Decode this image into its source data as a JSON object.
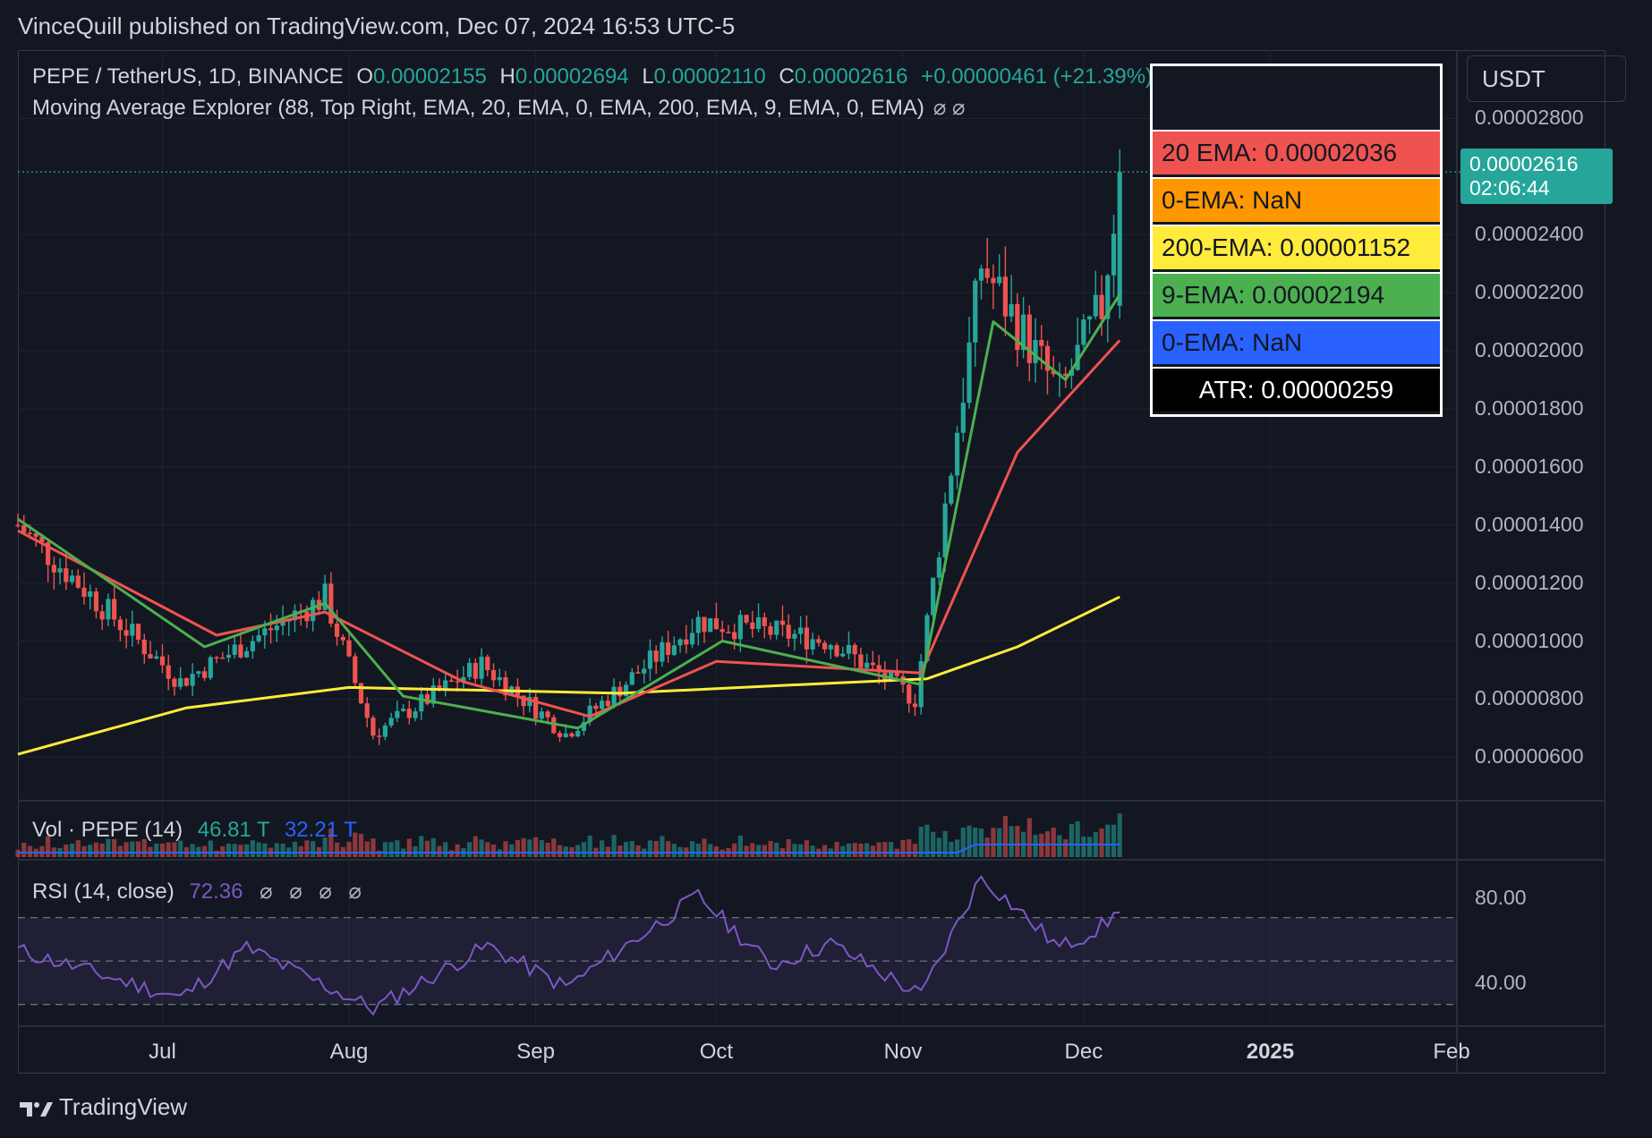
{
  "header": {
    "published": "VinceQuill published on TradingView.com, Dec 07, 2024 16:53 UTC-5"
  },
  "symbol": {
    "name": "PEPE / TetherUS, 1D, BINANCE",
    "o_label": "O",
    "o": "0.00002155",
    "h_label": "H",
    "h": "0.00002694",
    "l_label": "L",
    "l": "0.00002110",
    "c_label": "C",
    "c": "0.00002616",
    "change": "+0.00000461 (+21.39%)"
  },
  "indicator": {
    "text": "Moving Average Explorer (88, Top Right, EMA, 20, EMA, 0, EMA, 200, EMA, 9, EMA, 0, EMA)",
    "glyph": "⌀ ⌀"
  },
  "currency": "USDT",
  "last_price": {
    "price": "0.00002616",
    "countdown": "02:06:44"
  },
  "legend": {
    "rows": [
      {
        "text": "20 EMA: 0.00002036",
        "bg": "#ef5350",
        "fg": "#131722"
      },
      {
        "text": "0-EMA: NaN",
        "bg": "#ff9800",
        "fg": "#131722"
      },
      {
        "text": "200-EMA: 0.00001152",
        "bg": "#ffeb3b",
        "fg": "#131722"
      },
      {
        "text": "9-EMA: 0.00002194",
        "bg": "#4caf50",
        "fg": "#131722"
      },
      {
        "text": "0-EMA: NaN",
        "bg": "#2962ff",
        "fg": "#131722"
      },
      {
        "text": "ATR: 0.00000259",
        "bg": "#000000",
        "fg": "#ffffff"
      }
    ]
  },
  "price_axis": [
    "0.00002800",
    "0.00002400",
    "0.00002200",
    "0.00002000",
    "0.00001800",
    "0.00001600",
    "0.00001400",
    "0.00001200",
    "0.00001000",
    "0.00000800",
    "0.00000600"
  ],
  "time_axis": [
    "Jul",
    "Aug",
    "Sep",
    "Oct",
    "Nov",
    "Dec",
    "2025",
    "Feb"
  ],
  "volume": {
    "title": "Vol · PEPE (14)",
    "v1": "46.81 T",
    "v2": "32.21 T"
  },
  "rsi": {
    "title": "RSI (14, close)",
    "value": "72.36",
    "glyphs": "⌀ ⌀ ⌀ ⌀",
    "levels": [
      "80.00",
      "40.00"
    ]
  },
  "brand": "TradingView",
  "colors": {
    "up": "#26a69a",
    "down": "#ef5350",
    "ema20": "#ef5350",
    "ema9": "#4caf50",
    "ema200": "#ffeb3b",
    "rsi": "#7e57c2",
    "vol_ma": "#2962ff"
  },
  "chart_data": {
    "type": "candlestick",
    "symbol": "PEPE / TetherUS",
    "interval": "1D",
    "x_range": [
      "2024-06-07",
      "2025-02-01"
    ],
    "ylim": [
      4.5e-06,
      2.9e-05
    ],
    "last_close": 2.616e-05,
    "key_points": [
      {
        "date": "2024-06-07",
        "close": 1.4e-05
      },
      {
        "date": "2024-07-04",
        "close": 8.6e-06
      },
      {
        "date": "2024-07-28",
        "close": 1.15e-05
      },
      {
        "date": "2024-08-05",
        "close": 6.8e-06
      },
      {
        "date": "2024-08-23",
        "close": 9.2e-06
      },
      {
        "date": "2024-09-06",
        "close": 6.8e-06
      },
      {
        "date": "2024-09-28",
        "close": 1.07e-05
      },
      {
        "date": "2024-10-20",
        "close": 1e-05
      },
      {
        "date": "2024-11-03",
        "close": 8e-06
      },
      {
        "date": "2024-11-12",
        "close": 2e-05
      },
      {
        "date": "2024-11-14",
        "close": 2.3e-05
      },
      {
        "date": "2024-11-27",
        "close": 1.85e-05
      },
      {
        "date": "2024-12-04",
        "close": 2.15e-05
      },
      {
        "date": "2024-12-07",
        "close": 2.616e-05
      }
    ],
    "ema20": [
      {
        "date": "2024-06-07",
        "value": 1.38e-05
      },
      {
        "date": "2024-07-10",
        "value": 1.02e-05
      },
      {
        "date": "2024-07-28",
        "value": 1.1e-05
      },
      {
        "date": "2024-08-20",
        "value": 8.6e-06
      },
      {
        "date": "2024-09-10",
        "value": 7.4e-06
      },
      {
        "date": "2024-10-01",
        "value": 9.3e-06
      },
      {
        "date": "2024-11-04",
        "value": 8.9e-06
      },
      {
        "date": "2024-11-20",
        "value": 1.65e-05
      },
      {
        "date": "2024-12-07",
        "value": 2.036e-05
      }
    ],
    "ema9": [
      {
        "date": "2024-06-07",
        "value": 1.42e-05
      },
      {
        "date": "2024-07-08",
        "value": 9.8e-06
      },
      {
        "date": "2024-07-28",
        "value": 1.13e-05
      },
      {
        "date": "2024-08-10",
        "value": 8.1e-06
      },
      {
        "date": "2024-09-08",
        "value": 7e-06
      },
      {
        "date": "2024-10-02",
        "value": 1e-05
      },
      {
        "date": "2024-11-04",
        "value": 8.5e-06
      },
      {
        "date": "2024-11-16",
        "value": 2.1e-05
      },
      {
        "date": "2024-11-28",
        "value": 1.9e-05
      },
      {
        "date": "2024-12-07",
        "value": 2.194e-05
      }
    ],
    "ema200": [
      {
        "date": "2024-06-07",
        "value": 6.1e-06
      },
      {
        "date": "2024-07-05",
        "value": 7.7e-06
      },
      {
        "date": "2024-08-01",
        "value": 8.4e-06
      },
      {
        "date": "2024-09-15",
        "value": 8.2e-06
      },
      {
        "date": "2024-10-15",
        "value": 8.5e-06
      },
      {
        "date": "2024-11-05",
        "value": 8.7e-06
      },
      {
        "date": "2024-11-20",
        "value": 9.8e-06
      },
      {
        "date": "2024-12-07",
        "value": 1.152e-05
      }
    ],
    "rsi_series": [
      {
        "date": "2024-06-07",
        "value": 55
      },
      {
        "date": "2024-07-04",
        "value": 33
      },
      {
        "date": "2024-07-15",
        "value": 56
      },
      {
        "date": "2024-08-05",
        "value": 28
      },
      {
        "date": "2024-08-24",
        "value": 57
      },
      {
        "date": "2024-09-06",
        "value": 38
      },
      {
        "date": "2024-09-28",
        "value": 80
      },
      {
        "date": "2024-10-10",
        "value": 48
      },
      {
        "date": "2024-10-20",
        "value": 58
      },
      {
        "date": "2024-11-04",
        "value": 34
      },
      {
        "date": "2024-11-14",
        "value": 89
      },
      {
        "date": "2024-11-27",
        "value": 56
      },
      {
        "date": "2024-12-04",
        "value": 66
      },
      {
        "date": "2024-12-07",
        "value": 72.36
      }
    ],
    "rsi_range": [
      20,
      95
    ],
    "rsi_levels": [
      70,
      50,
      30
    ],
    "volume_last": "46.81 T",
    "volume_ma": "32.21 T",
    "grid": true,
    "legend_position": "top-right"
  }
}
